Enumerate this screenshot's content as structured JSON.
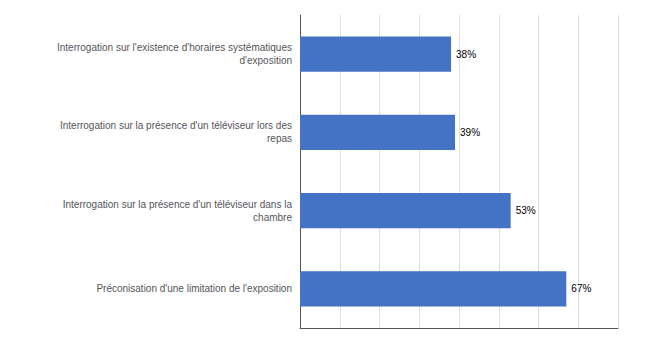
{
  "chart_data": {
    "type": "bar",
    "orientation": "horizontal",
    "categories": [
      "Préconisation d'une limitation de l'exposition",
      "Interrogation sur la présence d'un téléviseur dans la\nchambre",
      "Interrogation sur la présence d'un téléviseur lors des\nrepas",
      "Interrogation sur l'existence d'horaires systématiques\nd'exposition"
    ],
    "values": [
      67,
      53,
      39,
      38
    ],
    "value_labels": [
      "67%",
      "53%",
      "39%",
      "38%"
    ],
    "data_labels": true,
    "color": "#4472C4",
    "xlim": [
      0,
      80
    ],
    "xticks": [
      0,
      10,
      20,
      30,
      40,
      50,
      60,
      70,
      80
    ],
    "grid": true,
    "tick_labels": "y"
  }
}
